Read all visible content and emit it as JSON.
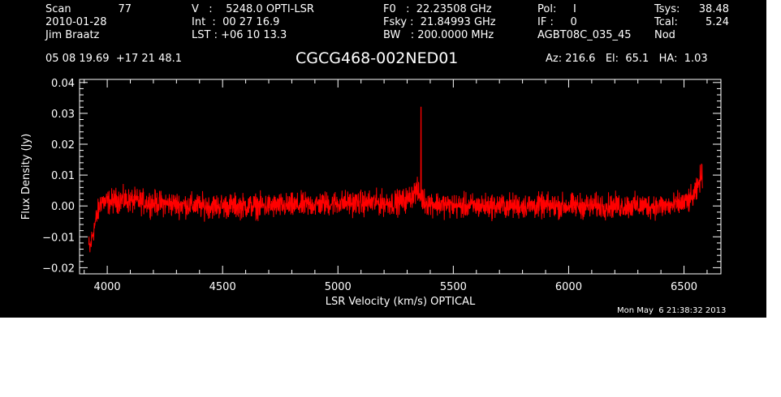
{
  "header": {
    "scan_label": "Scan",
    "scan_number": "77",
    "date": "2010-01-28",
    "observer": "Jim Braatz",
    "velocity": "V   :    5248.0 OPTI-LSR",
    "integration": "Int  :  00 27 16.9",
    "lst": "LST : +06 10 13.3",
    "f0": "F0   :  22.23508 GHz",
    "fsky": "Fsky :  21.84993 GHz",
    "bw": "BW   : 200.0000 MHz",
    "pol": "Pol:     I",
    "if": "IF :     0",
    "project": "AGBT08C_035_45",
    "tsys_label": "Tsys:",
    "tsys_value": "38.48",
    "tcal_label": "Tcal:",
    "tcal_value": "5.24",
    "mode": "Nod",
    "coords": "05 08 19.69  +17 21 48.1",
    "source": "CGCG468-002NED01",
    "az_el_ha": "Az: 216.6   El:  65.1   HA:  1.03",
    "timestamp": "Mon May  6 21:38:32 2013"
  },
  "chart_data": {
    "type": "line",
    "xlabel": "LSR Velocity (km/s) OPTICAL",
    "ylabel": "Flux Density (Jy)",
    "xlim": [
      3880,
      6660
    ],
    "ylim": [
      -0.022,
      0.041
    ],
    "xticks": [
      4000,
      4500,
      5000,
      5500,
      6000,
      6500
    ],
    "yticks": [
      -0.02,
      -0.01,
      0.0,
      0.01,
      0.02,
      0.03,
      0.04
    ],
    "ytick_labels": [
      "−0.02",
      "−0.01",
      "0.00",
      "0.01",
      "0.02",
      "0.03",
      "0.04"
    ],
    "line_color": "#ff0000",
    "axis_color": "#ffffff",
    "background": "#000000",
    "noise_rms": 0.0028,
    "series": [
      {
        "x": [
          3920,
          3925,
          3930,
          3940,
          3950,
          3960,
          3975,
          3990,
          4050,
          4200,
          4400,
          4600,
          4800,
          5000,
          5150,
          5250,
          5300,
          5340,
          5360,
          5370,
          5380,
          5400,
          5500,
          5700,
          5900,
          6100,
          6300,
          6450,
          6500,
          6530,
          6550,
          6560,
          6570,
          6580
        ],
        "values": [
          -0.013,
          -0.014,
          -0.012,
          -0.008,
          -0.005,
          -0.002,
          0.002,
          0.001,
          0.002,
          0.001,
          0.0,
          0.0,
          0.0,
          0.001,
          0.001,
          0.001,
          0.002,
          0.005,
          0.003,
          0.002,
          0.001,
          0.001,
          0.0,
          0.0,
          0.0,
          0.0,
          0.0,
          0.0,
          0.001,
          0.002,
          0.004,
          0.006,
          0.009,
          0.01
        ]
      }
    ],
    "spike": {
      "x": 5360,
      "y": 0.032
    }
  }
}
